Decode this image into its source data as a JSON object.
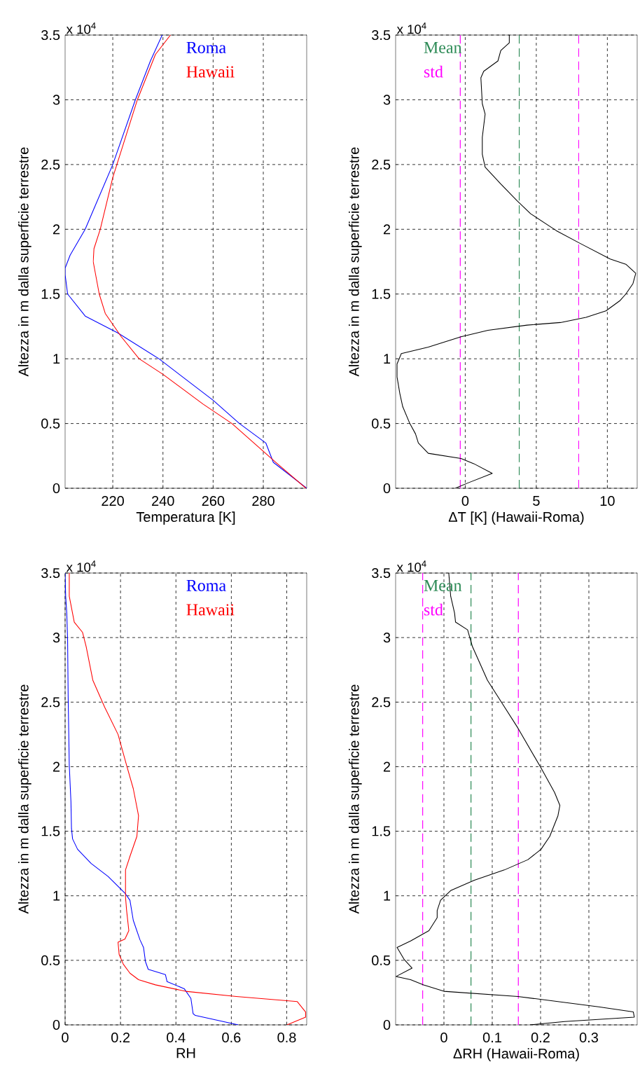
{
  "chart_data": [
    {
      "type": "line",
      "xlabel": "Temperatura [K]",
      "ylabel": "Altezza in m dalla superficie terrestre",
      "annotations": [
        "x 10$^{4}$"
      ],
      "xlim": [
        201,
        297.3
      ],
      "ylim": [
        0,
        3.5
      ],
      "xticks": [
        220,
        240,
        260,
        280
      ],
      "yticks": [
        0,
        0.5,
        1,
        1.5,
        2,
        2.5,
        3,
        3.5
      ],
      "grid": true,
      "legend": "top",
      "series": [
        {
          "name": "Roma",
          "color": "#0000ff",
          "x": [
            297.3,
            284,
            281,
            270.5,
            260,
            238.4,
            222,
            209,
            202,
            201,
            201,
            203,
            209,
            220,
            229,
            235,
            239.7
          ],
          "values": [
            0,
            0.2,
            0.35,
            0.5,
            0.68,
            1.0,
            1.2,
            1.33,
            1.5,
            1.65,
            1.7,
            1.8,
            2.0,
            2.5,
            3.0,
            3.3,
            3.5
          ]
        },
        {
          "name": "Hawaii",
          "color": "#ff0000",
          "x": [
            297,
            285,
            278,
            267.5,
            256,
            240,
            230.5,
            223.4,
            217,
            214.6,
            212.2,
            212.5,
            215,
            220,
            229.8,
            237,
            243
          ],
          "values": [
            0,
            0.2,
            0.32,
            0.5,
            0.65,
            0.88,
            1.0,
            1.17,
            1.35,
            1.5,
            1.75,
            1.85,
            2.0,
            2.4,
            3.0,
            3.35,
            3.5
          ]
        }
      ]
    },
    {
      "type": "line",
      "xlabel": "ΔT [K] (Hawaii-Roma)",
      "ylabel": "Altezza in m dalla superficie terrestre",
      "annotations": [
        "x 10$^{4}$"
      ],
      "xlim": [
        -4.9,
        12.1
      ],
      "ylim": [
        0,
        3.5
      ],
      "xticks": [
        0,
        5,
        10
      ],
      "yticks": [
        0,
        0.5,
        1,
        1.5,
        2,
        2.5,
        3,
        3.5
      ],
      "grid": true,
      "ref_lines": [
        {
          "axis": "x",
          "value": 3.8,
          "label": "Mean",
          "color": "#2e8b57",
          "line_style": "dashed"
        },
        {
          "axis": "x",
          "value": -0.35,
          "label": "std",
          "color": "#ff00ff",
          "line_style": "dashed"
        },
        {
          "axis": "x",
          "value": 7.98,
          "color": "#ff00ff",
          "line_style": "dashed"
        }
      ],
      "series": [
        {
          "color": "#000000",
          "x": [
            -0.7,
            0.16,
            1.9,
            0.6,
            -0.3,
            -2.6,
            -3.3,
            -3.5,
            -3.9,
            -4.4,
            -4.6,
            -4.8,
            -4.8,
            -4.5,
            -2.6,
            -0.3,
            1.6,
            4.35,
            6.7,
            8.5,
            9.9,
            10.9,
            11.3,
            11.8,
            12.0,
            11.3,
            10.2,
            8.1,
            6.4,
            4.6,
            3.65,
            2.5,
            1.4,
            1.2,
            1.2,
            1.4,
            1.2,
            1.1,
            1.3,
            2.3,
            2.5,
            3.1,
            3.1
          ],
          "values": [
            0,
            0.04,
            0.115,
            0.19,
            0.23,
            0.27,
            0.35,
            0.42,
            0.5,
            0.63,
            0.73,
            0.86,
            0.96,
            1.04,
            1.09,
            1.17,
            1.22,
            1.26,
            1.28,
            1.32,
            1.37,
            1.45,
            1.5,
            1.58,
            1.66,
            1.73,
            1.77,
            1.89,
            1.99,
            2.12,
            2.22,
            2.35,
            2.48,
            2.58,
            2.71,
            2.89,
            2.97,
            3.17,
            3.22,
            3.3,
            3.38,
            3.44,
            3.5
          ]
        }
      ]
    },
    {
      "type": "line",
      "xlabel": "RH",
      "ylabel": "Altezza in m dalla superficie terrestre",
      "annotations": [
        "x 10$^{4}$"
      ],
      "xlim": [
        0,
        0.872
      ],
      "ylim": [
        0,
        3.5
      ],
      "xticks": [
        0,
        0.2,
        0.4,
        0.6,
        0.8
      ],
      "yticks": [
        0,
        0.5,
        1,
        1.5,
        2,
        2.5,
        3,
        3.5
      ],
      "grid": true,
      "legend": "top",
      "series": [
        {
          "name": "Roma",
          "color": "#0000ff",
          "x": [
            0.625,
            0.47,
            0.462,
            0.454,
            0.43,
            0.368,
            0.362,
            0.3,
            0.29,
            0.283,
            0.27,
            0.246,
            0.234,
            0.216,
            0.155,
            0.094,
            0.045,
            0.027,
            0.023,
            0.021,
            0.015,
            0.011,
            0.009,
            0.006,
            0.002,
            0
          ],
          "values": [
            0,
            0.073,
            0.087,
            0.205,
            0.28,
            0.335,
            0.39,
            0.43,
            0.49,
            0.6,
            0.66,
            0.81,
            0.965,
            1.02,
            1.15,
            1.25,
            1.36,
            1.44,
            1.52,
            1.73,
            2.01,
            2.54,
            2.98,
            3.19,
            3.32,
            3.5
          ]
        },
        {
          "name": "Hawaii",
          "color": "#ff0000",
          "x": [
            0.801,
            0.868,
            0.868,
            0.838,
            0.618,
            0.435,
            0.326,
            0.265,
            0.234,
            0.21,
            0.195,
            0.191,
            0.216,
            0.23,
            0.222,
            0.218,
            0.218,
            0.234,
            0.259,
            0.265,
            0.246,
            0.222,
            0.191,
            0.143,
            0.1,
            0.076,
            0.063,
            0.033,
            0.015,
            0.015
          ],
          "values": [
            0,
            0.06,
            0.1,
            0.18,
            0.22,
            0.26,
            0.31,
            0.35,
            0.4,
            0.47,
            0.545,
            0.64,
            0.665,
            0.73,
            0.885,
            0.99,
            1.2,
            1.305,
            1.46,
            1.62,
            1.83,
            2.01,
            2.25,
            2.46,
            2.67,
            2.93,
            3.04,
            3.12,
            3.32,
            3.5
          ]
        }
      ]
    },
    {
      "type": "line",
      "xlabel": "ΔRH (Hawaii-Roma)",
      "ylabel": "Altezza in m dalla superficie terrestre",
      "annotations": [
        "x 10$^{4}$"
      ],
      "xlim": [
        -0.1,
        0.4
      ],
      "ylim": [
        0,
        3.5
      ],
      "xticks": [
        0,
        0.1,
        0.2,
        0.3
      ],
      "yticks": [
        0,
        0.5,
        1,
        1.5,
        2,
        2.5,
        3,
        3.5
      ],
      "grid": true,
      "ref_lines": [
        {
          "axis": "x",
          "value": 0.056,
          "label": "Mean",
          "color": "#2e8b57",
          "line_style": "dashed"
        },
        {
          "axis": "x",
          "value": -0.044,
          "label": "std",
          "color": "#ff00ff",
          "line_style": "dashed"
        },
        {
          "axis": "x",
          "value": 0.154,
          "color": "#ff00ff",
          "line_style": "dashed"
        }
      ],
      "series": [
        {
          "color": "#000000",
          "x": [
            0.178,
            0.25,
            0.394,
            0.392,
            0.32,
            0.153,
            0,
            -0.042,
            -0.069,
            -0.099,
            -0.066,
            -0.082,
            -0.097,
            -0.069,
            -0.031,
            -0.014,
            -0.014,
            -0.007,
            0.014,
            0.063,
            0.125,
            0.174,
            0.201,
            0.219,
            0.236,
            0.24,
            0.229,
            0.201,
            0.153,
            0.09,
            0.059,
            0.049,
            0.024,
            0.022,
            0.014,
            0.01
          ],
          "values": [
            0,
            0.026,
            0.06,
            0.1,
            0.14,
            0.22,
            0.26,
            0.31,
            0.35,
            0.375,
            0.44,
            0.505,
            0.6,
            0.65,
            0.73,
            0.83,
            0.885,
            0.965,
            1.04,
            1.12,
            1.2,
            1.28,
            1.36,
            1.46,
            1.62,
            1.7,
            1.8,
            1.99,
            2.3,
            2.67,
            2.93,
            3.06,
            3.12,
            3.19,
            3.32,
            3.5
          ]
        }
      ]
    }
  ]
}
